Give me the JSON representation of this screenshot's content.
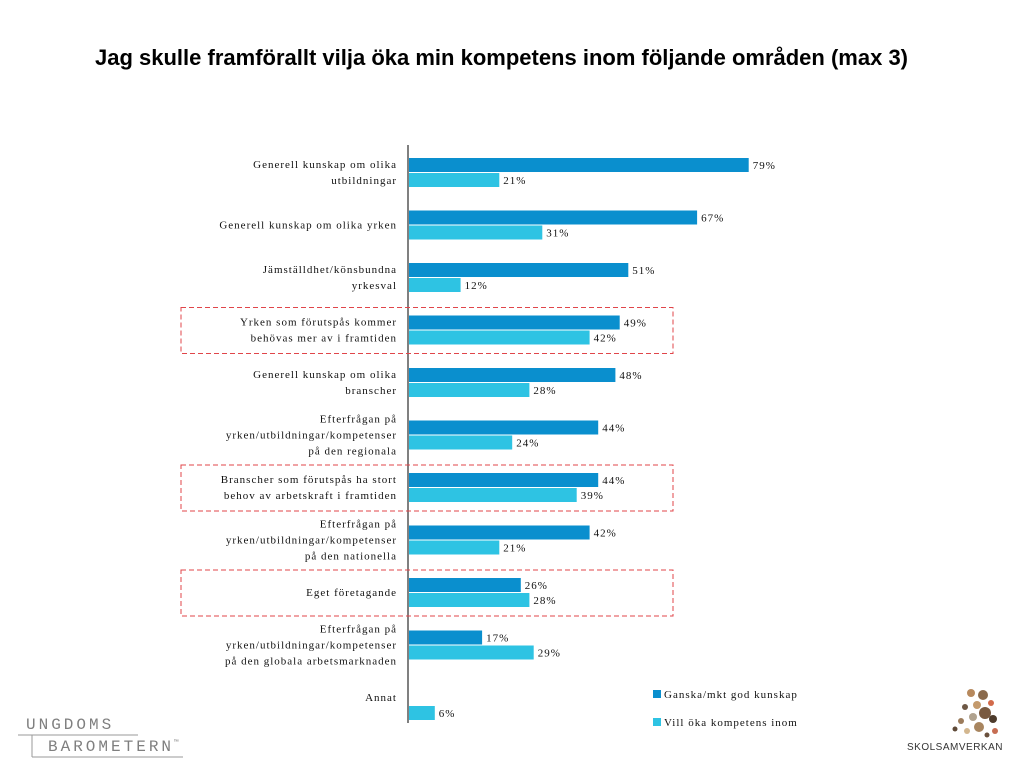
{
  "title": "Jag skulle framförallt vilja öka min kompetens inom följande områden (max 3)",
  "chart_data": {
    "type": "bar",
    "orientation": "horizontal",
    "title": "Jag skulle framförallt vilja öka min kompetens inom följande områden (max 3)",
    "categories": [
      [
        "Generell kunskap om olika",
        "utbildningar"
      ],
      [
        "Generell kunskap om olika yrken"
      ],
      [
        "Jämställdhet/könsbundna",
        "yrkesval"
      ],
      [
        "Yrken som förutspås kommer",
        "behövas mer av i framtiden"
      ],
      [
        "Generell kunskap om olika",
        "branscher"
      ],
      [
        "Efterfrågan på",
        "yrken/utbildningar/kompetenser",
        "på den regionala"
      ],
      [
        "Branscher som förutspås ha stort",
        "behov av arbetskraft i framtiden"
      ],
      [
        "Efterfrågan på",
        "yrken/utbildningar/kompetenser",
        "på den nationella"
      ],
      [
        "Eget företagande"
      ],
      [
        "Efterfrågan på",
        "yrken/utbildningar/kompetenser",
        "på den globala arbetsmarknaden"
      ],
      [
        "Annat"
      ]
    ],
    "series": [
      {
        "name": "Ganska/mkt god kunskap",
        "color": "#0a8fce",
        "values": [
          79,
          67,
          51,
          49,
          48,
          44,
          44,
          42,
          26,
          17,
          null
        ]
      },
      {
        "name": "Vill öka kompetens inom",
        "color": "#2ec3e3",
        "values": [
          21,
          31,
          12,
          42,
          28,
          24,
          39,
          21,
          28,
          29,
          6
        ]
      }
    ],
    "value_suffix": "%",
    "highlighted_categories": [
      3,
      6,
      8
    ],
    "highlight_color": "#e0454a",
    "legend_position": "bottom-right",
    "grid": false
  },
  "logos": {
    "left_line1": "UNGDOMS",
    "left_line2": "BAROMETERN",
    "left_tm": "™",
    "right_name": "SKOLSAMVERKAN"
  }
}
